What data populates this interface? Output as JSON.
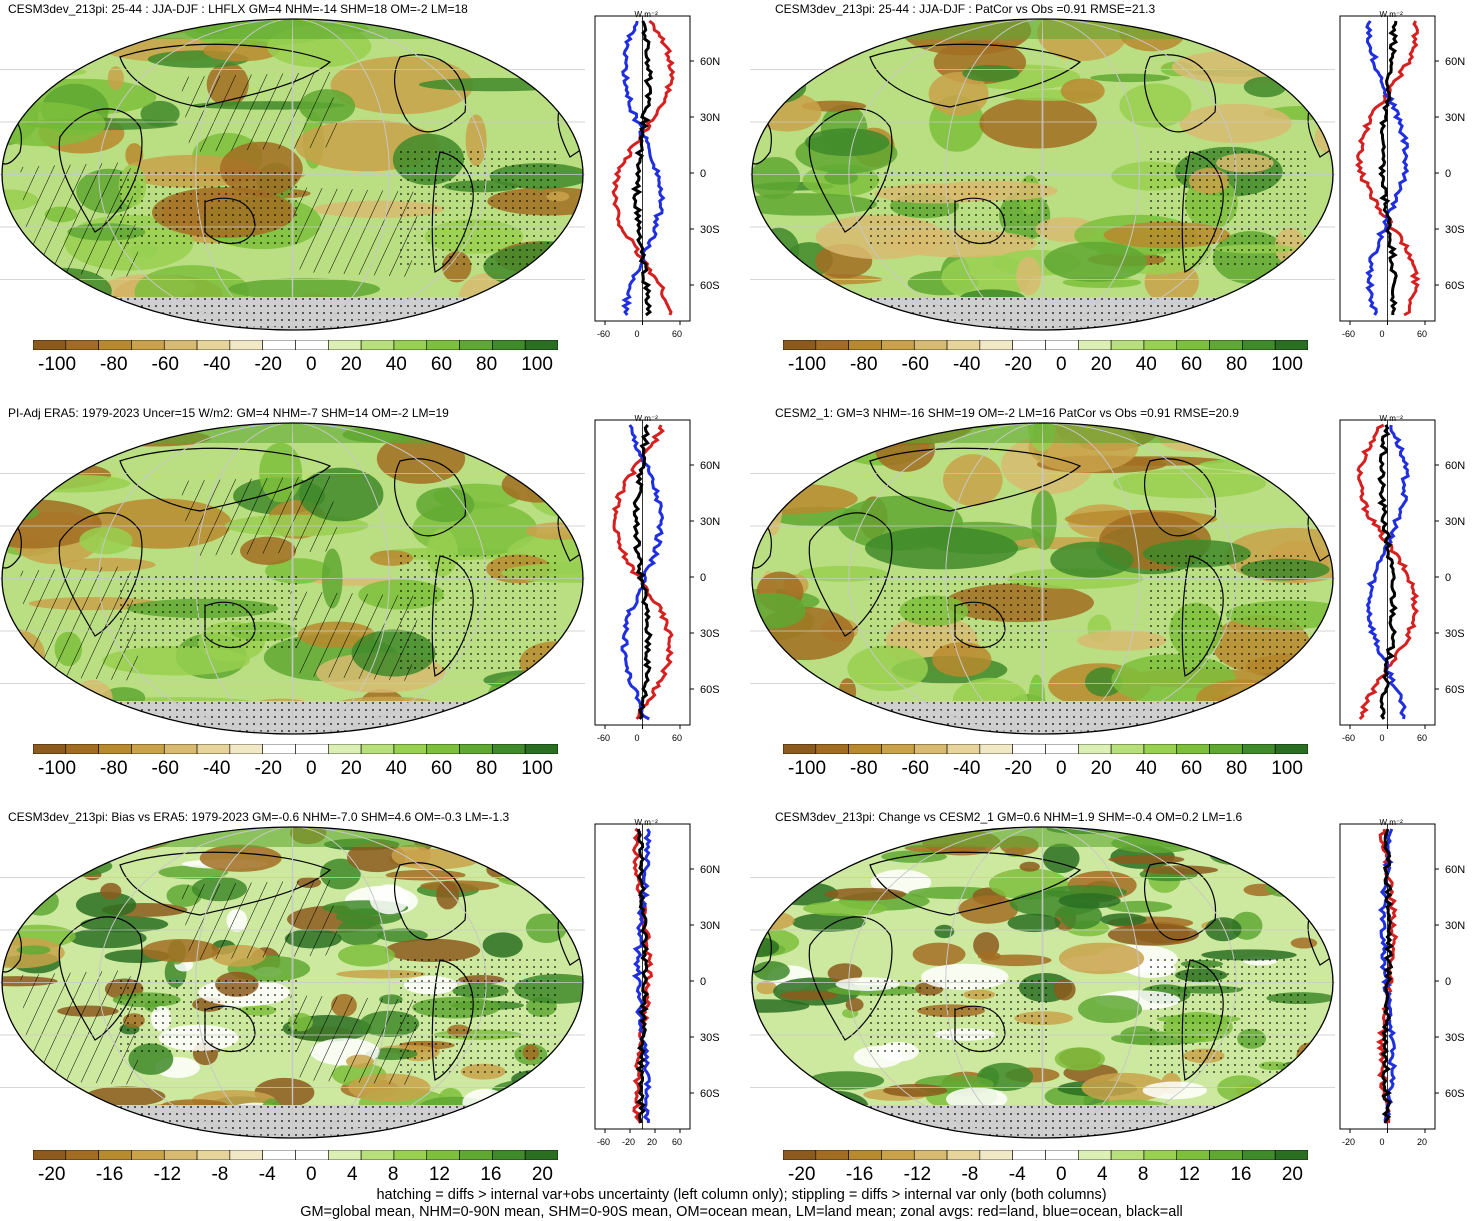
{
  "panels": [
    {
      "id": "p1",
      "title": "CESM3dev_213pi: 25-44 : JJA-DJF : LHFLX GM=4 NHM=-14 SHM=18 OM=-2 LM=18",
      "colorbar_ticks": [
        "-100",
        "-80",
        "-60",
        "-40",
        "-20",
        "0",
        "20",
        "40",
        "60",
        "80",
        "100"
      ],
      "zonal_xticks": [
        "-60",
        "0",
        "60"
      ],
      "zonal_yticks": [
        "60N",
        "30N",
        "0",
        "30S",
        "60S"
      ],
      "zonal_unit": "W m⁻²"
    },
    {
      "id": "p2",
      "title": "CESM3dev_213pi: 25-44 : JJA-DJF : PatCor vs Obs =0.91 RMSE=21.3",
      "colorbar_ticks": [
        "-100",
        "-80",
        "-60",
        "-40",
        "-20",
        "0",
        "20",
        "40",
        "60",
        "80",
        "100"
      ],
      "zonal_xticks": [
        "-60",
        "0",
        "60"
      ],
      "zonal_yticks": [
        "60N",
        "30N",
        "0",
        "30S",
        "60S"
      ],
      "zonal_unit": "W m⁻²"
    },
    {
      "id": "p3",
      "title": "PI-Adj ERA5: 1979-2023 Uncer=15 W/m2: GM=4 NHM=-7 SHM=14 OM=-2 LM=19",
      "colorbar_ticks": [
        "-100",
        "-80",
        "-60",
        "-40",
        "-20",
        "0",
        "20",
        "40",
        "60",
        "80",
        "100"
      ],
      "zonal_xticks": [
        "-60",
        "0",
        "60"
      ],
      "zonal_yticks": [
        "60N",
        "30N",
        "0",
        "30S",
        "60S"
      ],
      "zonal_unit": "W m⁻²"
    },
    {
      "id": "p4",
      "title": "CESM2_1: GM=3 NHM=-16 SHM=19 OM=-2 LM=16 PatCor vs Obs =0.91 RMSE=20.9",
      "colorbar_ticks": [
        "-100",
        "-80",
        "-60",
        "-40",
        "-20",
        "0",
        "20",
        "40",
        "60",
        "80",
        "100"
      ],
      "zonal_xticks": [
        "-60",
        "0",
        "60"
      ],
      "zonal_yticks": [
        "60N",
        "30N",
        "0",
        "30S",
        "60S"
      ],
      "zonal_unit": "W m⁻²"
    },
    {
      "id": "p5",
      "title": "CESM3dev_213pi: Bias vs ERA5: 1979-2023 GM=-0.6 NHM=-7.0 SHM=4.6 OM=-0.3 LM=-1.3",
      "colorbar_ticks": [
        "-20",
        "-16",
        "-12",
        "-8",
        "-4",
        "0",
        "4",
        "8",
        "12",
        "16",
        "20"
      ],
      "zonal_xticks": [
        "-60",
        "-20",
        "20",
        "60"
      ],
      "zonal_yticks": [
        "60N",
        "30N",
        "0",
        "30S",
        "60S"
      ],
      "zonal_unit": "W m⁻²"
    },
    {
      "id": "p6",
      "title": "CESM3dev_213pi: Change vs CESM2_1 GM=0.6 NHM=1.9 SHM=-0.4 OM=0.2 LM=1.6",
      "colorbar_ticks": [
        "-20",
        "-16",
        "-12",
        "-8",
        "-4",
        "0",
        "4",
        "8",
        "12",
        "16",
        "20"
      ],
      "zonal_xticks": [
        "-20",
        "0",
        "20"
      ],
      "zonal_yticks": [
        "60N",
        "30N",
        "0",
        "30S",
        "60S"
      ],
      "zonal_unit": "W m⁻²"
    }
  ],
  "colors": {
    "colorbar": [
      "#8c5a1c",
      "#a26d22",
      "#b88a2e",
      "#c9a24a",
      "#d8bb70",
      "#e6d49a",
      "#f1e8c6",
      "#ffffff",
      "#ffffff",
      "#dcefb4",
      "#b8e07a",
      "#98d050",
      "#7cc03c",
      "#5fa832",
      "#3f8a2a",
      "#2a6e22"
    ],
    "land_line": "#d62020",
    "ocean_line": "#1f2fe0",
    "all_line": "#000000",
    "missing": "#cfcfcf"
  },
  "footer": {
    "line1": "hatching = diffs > internal var+obs uncertainty (left column only); stippling = diffs > internal var only (both columns)",
    "line2": "GM=global mean, NHM=0-90N mean, SHM=0-90S mean, OM=ocean mean, LM=land mean; zonal avgs: red=land, blue=ocean, black=all"
  }
}
